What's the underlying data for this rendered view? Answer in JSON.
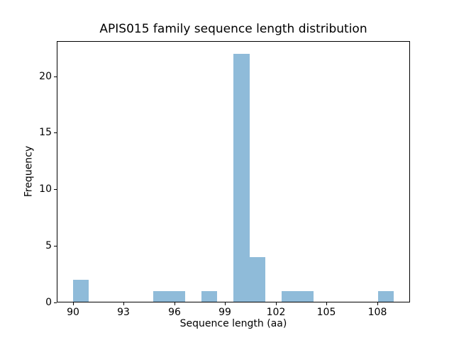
{
  "figure": {
    "background_color": "#ffffff",
    "text_color": "#000000",
    "spine_color": "#000000"
  },
  "chart_data": {
    "type": "bar",
    "subtype": "histogram",
    "title": "APIS015 family sequence length distribution",
    "xlabel": "Sequence length (aa)",
    "ylabel": "Frequency",
    "bar_color": "#8FBBD9",
    "grid": false,
    "legend": "none",
    "xlim": [
      89.05,
      109.95
    ],
    "ylim": [
      0,
      23.1
    ],
    "xticks": [
      90,
      93,
      96,
      99,
      102,
      105,
      108
    ],
    "yticks": [
      0,
      5,
      10,
      15,
      20
    ],
    "bin_width": 0.95,
    "bars": [
      {
        "x0": 90.0,
        "x1": 90.95,
        "freq": 2
      },
      {
        "x0": 94.75,
        "x1": 95.7,
        "freq": 1
      },
      {
        "x0": 95.7,
        "x1": 96.65,
        "freq": 1
      },
      {
        "x0": 97.6,
        "x1": 98.55,
        "freq": 1
      },
      {
        "x0": 99.5,
        "x1": 100.45,
        "freq": 22
      },
      {
        "x0": 100.45,
        "x1": 101.4,
        "freq": 4
      },
      {
        "x0": 102.35,
        "x1": 103.3,
        "freq": 1
      },
      {
        "x0": 103.3,
        "x1": 104.25,
        "freq": 1
      },
      {
        "x0": 108.05,
        "x1": 109.0,
        "freq": 1
      }
    ]
  }
}
